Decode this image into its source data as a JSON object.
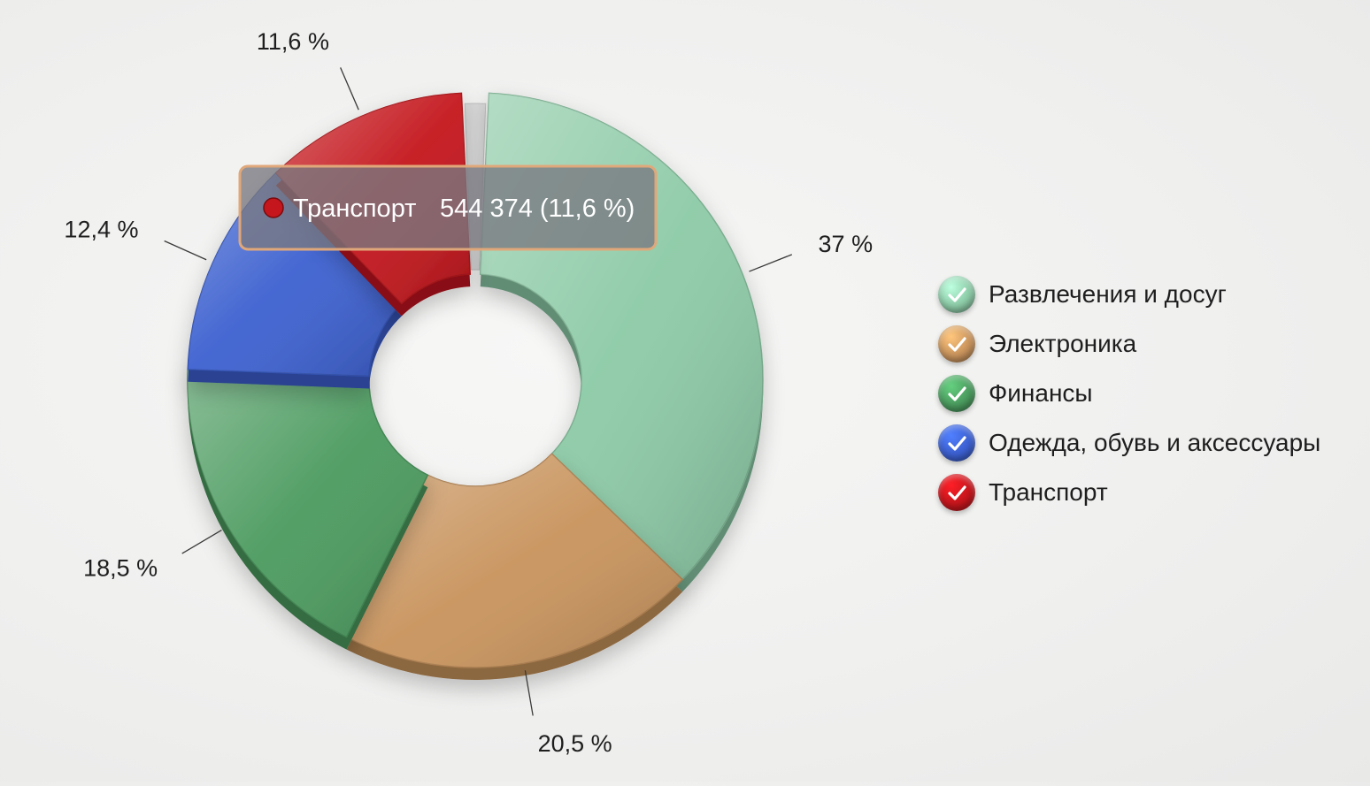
{
  "chart_data": {
    "type": "pie",
    "variant": "donut",
    "series": [
      {
        "name": "Развлечения и досуг",
        "value": 37,
        "label": "37 %",
        "color": "#8ccaa6"
      },
      {
        "name": "Электроника",
        "value": 20.5,
        "label": "20,5 %",
        "color": "#c8935c"
      },
      {
        "name": "Финансы",
        "value": 18.5,
        "label": "18,5 %",
        "color": "#4a9a5e"
      },
      {
        "name": "Одежда, обувь и аксессуары",
        "value": 12.4,
        "label": "12,4 %",
        "color": "#3b5fcf"
      },
      {
        "name": "Транспорт",
        "value": 11.6,
        "label": "11,6 %",
        "color": "#c4161c"
      }
    ],
    "legend_position": "right",
    "tooltip": {
      "category": "Транспорт",
      "value_text": "544 374 (11,6 %)",
      "color": "#c4161c"
    }
  },
  "legend": {
    "items": [
      {
        "label": "Развлечения и досуг",
        "checked": true,
        "color": "#8ccaa6",
        "icon": "check-icon"
      },
      {
        "label": "Электроника",
        "checked": true,
        "color": "#c8935c",
        "icon": "check-icon"
      },
      {
        "label": "Финансы",
        "checked": true,
        "color": "#4a9a5e",
        "icon": "check-icon"
      },
      {
        "label": "Одежда, обувь и аксессуары",
        "checked": true,
        "color": "#3b5fcf",
        "icon": "check-icon"
      },
      {
        "label": "Транспорт",
        "checked": true,
        "color": "#c4161c",
        "icon": "check-icon"
      }
    ]
  },
  "colors": {
    "divider": "#d8d8d8",
    "tooltip_border": "#e0a87a"
  }
}
